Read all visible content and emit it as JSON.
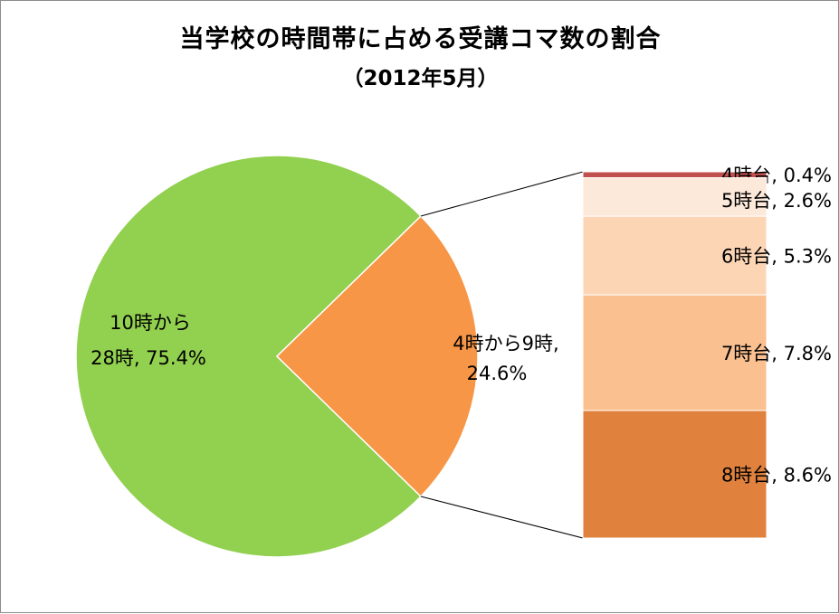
{
  "chart_data": {
    "type": "pie",
    "title": "当学校の時間帯に占める受講コマ数の割合",
    "subtitle": "（2012年5月）",
    "pie": {
      "slices": [
        {
          "label": "4時から9時,",
          "value_label": "24.6%",
          "value": 24.6,
          "color": "#f79646"
        },
        {
          "label": "10時から",
          "label2": "28時, 75.4%",
          "value": 75.4,
          "color": "#92d050"
        }
      ]
    },
    "breakdown": {
      "of": "4時から9時",
      "segments": [
        {
          "label": "4時台, 0.4%",
          "value": 0.4,
          "color": "#c0504d"
        },
        {
          "label": "5時台, 2.6%",
          "value": 2.6,
          "color": "#fde9d9"
        },
        {
          "label": "6時台, 5.3%",
          "value": 5.3,
          "color": "#fcd5b5"
        },
        {
          "label": "7時台, 7.8%",
          "value": 7.8,
          "color": "#fac090"
        },
        {
          "label": "8時台, 8.6%",
          "value": 8.6,
          "color": "#e0823d"
        }
      ]
    }
  }
}
